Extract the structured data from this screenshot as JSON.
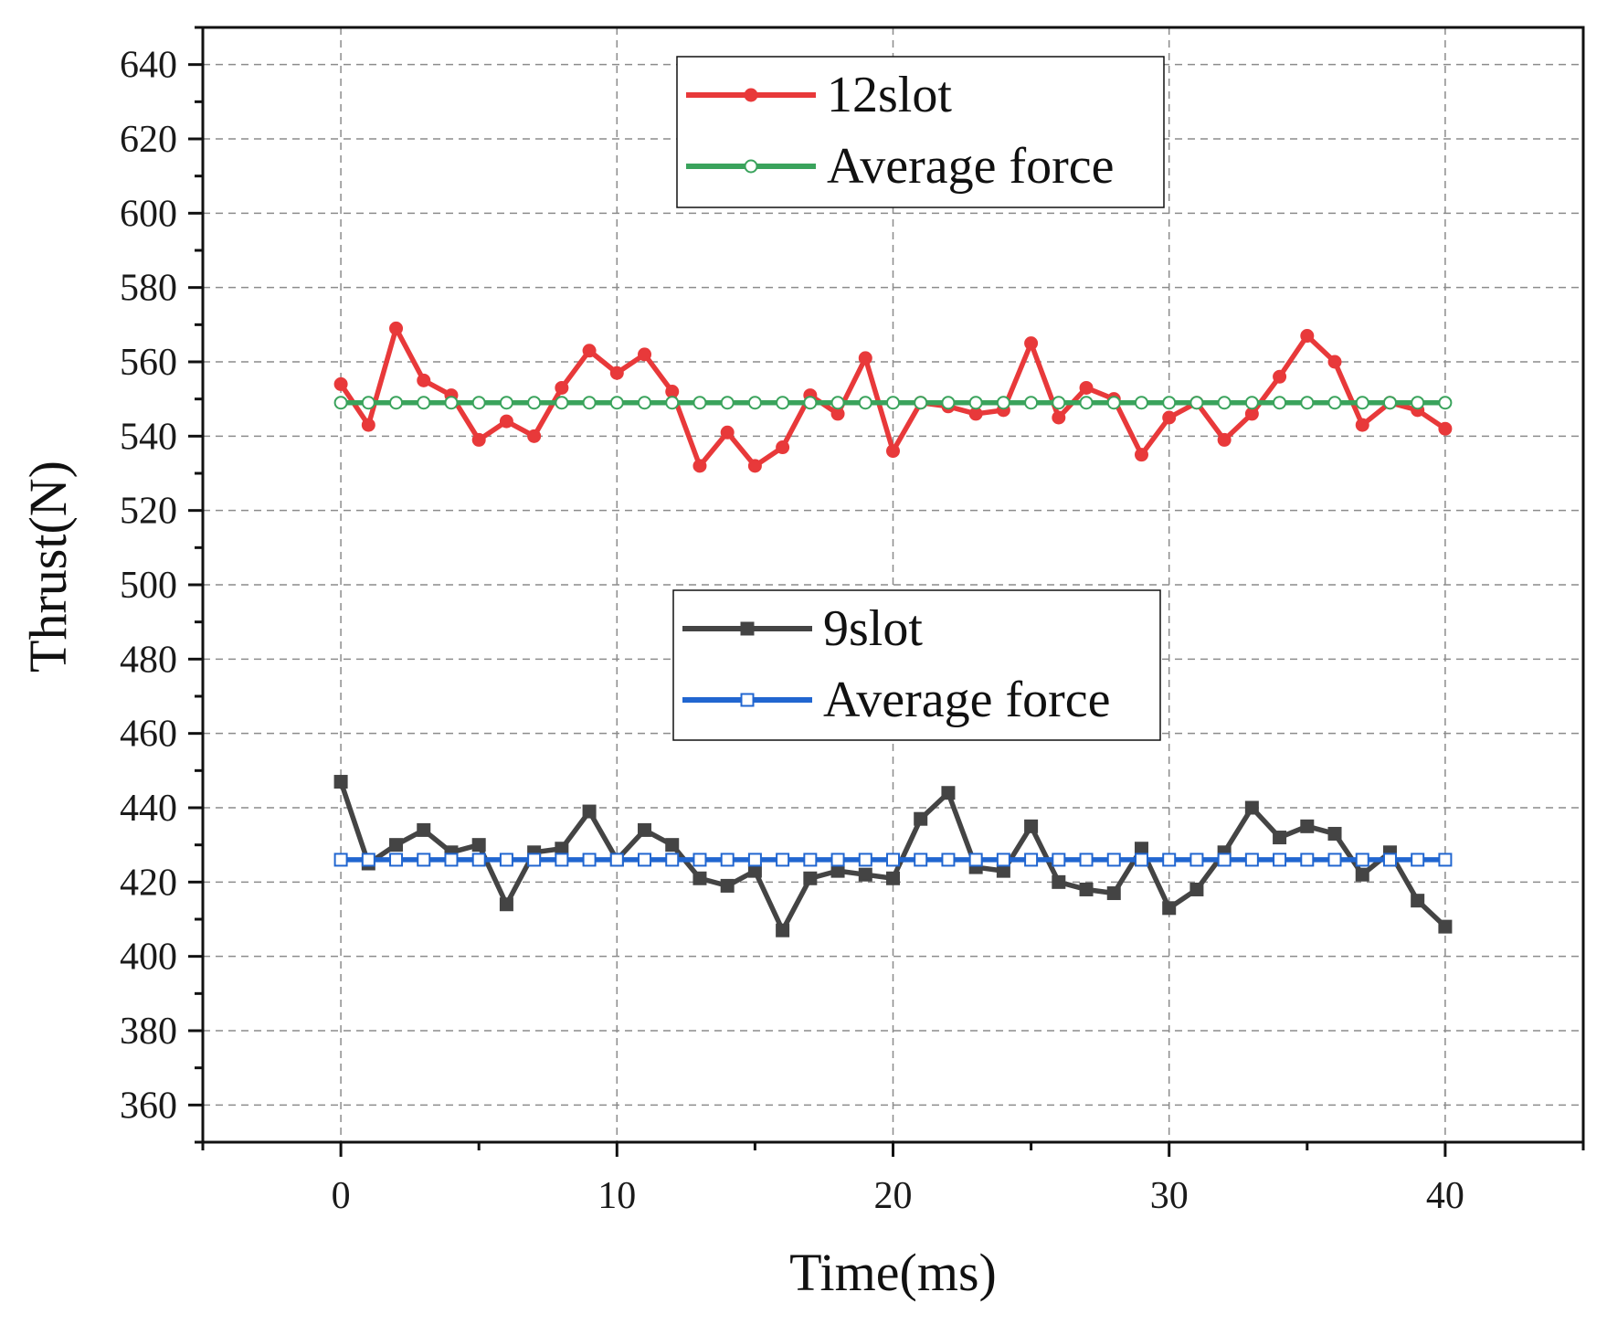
{
  "chart_data": {
    "type": "line",
    "title": "",
    "xlabel": "Time(ms)",
    "ylabel": "Thrust(N)",
    "xlim": [
      -5,
      45
    ],
    "ylim": [
      350,
      650
    ],
    "xticks": [
      0,
      10,
      20,
      30,
      40
    ],
    "yticks": [
      360,
      380,
      400,
      420,
      440,
      460,
      480,
      500,
      520,
      540,
      560,
      580,
      600,
      620,
      640
    ],
    "grid": true,
    "x": [
      0,
      1,
      2,
      3,
      4,
      5,
      6,
      7,
      8,
      9,
      10,
      11,
      12,
      13,
      14,
      15,
      16,
      17,
      18,
      19,
      20,
      21,
      22,
      23,
      24,
      25,
      26,
      27,
      28,
      29,
      30,
      31,
      32,
      33,
      34,
      35,
      36,
      37,
      38,
      39,
      40
    ],
    "series": [
      {
        "name": "12slot",
        "color": "#e8393a",
        "marker": "circle-filled",
        "values": [
          554,
          543,
          569,
          555,
          551,
          539,
          544,
          540,
          553,
          563,
          557,
          562,
          552,
          532,
          541,
          532,
          537,
          551,
          546,
          561,
          536,
          549,
          548,
          546,
          547,
          565,
          545,
          553,
          550,
          535,
          545,
          549,
          539,
          546,
          556,
          567,
          560,
          543,
          549,
          547,
          542
        ]
      },
      {
        "name": "Average force",
        "color": "#3aa35c",
        "marker": "circle-open",
        "values": [
          549,
          549,
          549,
          549,
          549,
          549,
          549,
          549,
          549,
          549,
          549,
          549,
          549,
          549,
          549,
          549,
          549,
          549,
          549,
          549,
          549,
          549,
          549,
          549,
          549,
          549,
          549,
          549,
          549,
          549,
          549,
          549,
          549,
          549,
          549,
          549,
          549,
          549,
          549,
          549,
          549
        ]
      },
      {
        "name": "9slot",
        "color": "#444444",
        "marker": "square-filled",
        "values": [
          447,
          425,
          430,
          434,
          428,
          430,
          414,
          428,
          429,
          439,
          426,
          434,
          430,
          421,
          419,
          423,
          407,
          421,
          423,
          422,
          421,
          437,
          444,
          424,
          423,
          435,
          420,
          418,
          417,
          429,
          413,
          418,
          428,
          440,
          432,
          435,
          433,
          422,
          428,
          415,
          408
        ]
      },
      {
        "name": "Average force",
        "color": "#2166d0",
        "marker": "square-open",
        "values": [
          426,
          426,
          426,
          426,
          426,
          426,
          426,
          426,
          426,
          426,
          426,
          426,
          426,
          426,
          426,
          426,
          426,
          426,
          426,
          426,
          426,
          426,
          426,
          426,
          426,
          426,
          426,
          426,
          426,
          426,
          426,
          426,
          426,
          426,
          426,
          426,
          426,
          426,
          426,
          426,
          426
        ]
      }
    ],
    "legends": [
      {
        "series": [
          0,
          1
        ],
        "placement": "top-center"
      },
      {
        "series": [
          2,
          3
        ],
        "placement": "center"
      }
    ]
  }
}
